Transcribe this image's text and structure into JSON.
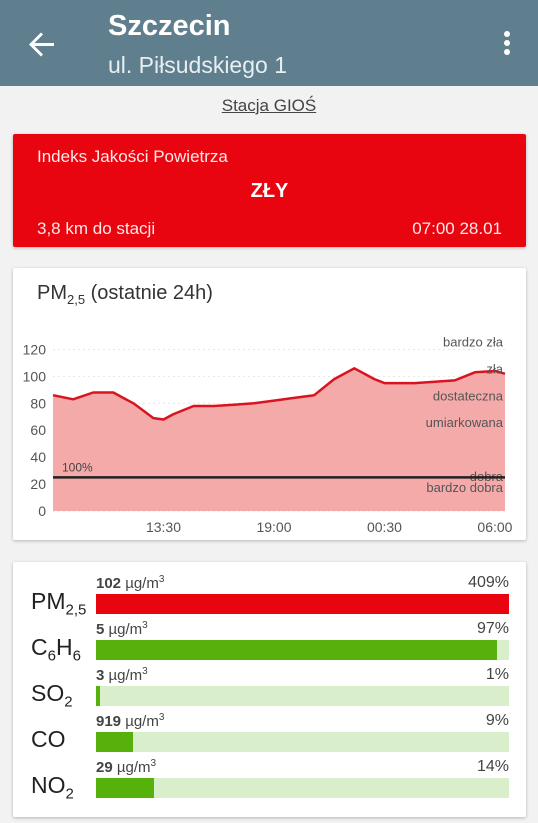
{
  "header": {
    "city": "Szczecin",
    "street": "ul. Piłsudskiego 1",
    "back_icon": "arrow-left-icon",
    "menu_icon": "more-vert-icon"
  },
  "station_link": "Stacja GIOŚ",
  "aqi": {
    "label": "Indeks Jakości Powietrza",
    "value": "ZŁY",
    "distance": "3,8 km do stacji",
    "time": "07:00 28.01",
    "color": "#e8050f"
  },
  "chart": {
    "title_main": "PM",
    "title_sub": "2,5",
    "title_rest": " (ostatnie 24h)"
  },
  "chart_data": {
    "type": "area",
    "x": [
      "08:00",
      "09:00",
      "10:00",
      "11:00",
      "12:00",
      "13:00",
      "13:30",
      "14:00",
      "15:00",
      "16:00",
      "17:00",
      "18:00",
      "19:00",
      "20:00",
      "21:00",
      "22:00",
      "23:00",
      "00:00",
      "00:30",
      "01:00",
      "02:00",
      "03:00",
      "04:00",
      "05:00",
      "06:00",
      "06:30"
    ],
    "y": [
      86,
      83,
      88,
      88,
      80,
      69,
      68,
      72,
      78,
      78,
      79,
      80,
      82,
      84,
      86,
      98,
      106,
      98,
      95,
      95,
      95,
      96,
      97,
      103,
      104,
      102
    ],
    "xticks": [
      "13:30",
      "19:00",
      "00:30",
      "06:00"
    ],
    "yticks": [
      0,
      20,
      40,
      60,
      80,
      100,
      120
    ],
    "ylim": [
      0,
      130
    ],
    "reference": {
      "value": 25,
      "label": "100%"
    },
    "bands": [
      {
        "label": "bardzo zła",
        "y": 120
      },
      {
        "label": "zła",
        "y": 100
      },
      {
        "label": "dostateczna",
        "y": 80
      },
      {
        "label": "umiarkowana",
        "y": 60
      },
      {
        "label": "dobra",
        "y": 20
      },
      {
        "label": "bardzo dobra",
        "y": 12
      }
    ],
    "fill_color": "#f5aaaa",
    "line_color": "#d9141e",
    "grid": true
  },
  "pollutants": [
    {
      "name": "PM",
      "sub": "2,5",
      "value": "102",
      "unit": "µg/m",
      "unit_sup": "3",
      "percent_label": "409%",
      "percent": 409,
      "color": "#e8050f"
    },
    {
      "name": "C",
      "sub": "6",
      "name2": "H",
      "sub2": "6",
      "value": "5",
      "unit": "µg/m",
      "unit_sup": "3",
      "percent_label": "97%",
      "percent": 97,
      "color": "#56b10a"
    },
    {
      "name": "SO",
      "sub": "2",
      "value": "3",
      "unit": "µg/m",
      "unit_sup": "3",
      "percent_label": "1%",
      "percent": 1,
      "color": "#56b10a"
    },
    {
      "name": "CO",
      "sub": "",
      "value": "919",
      "unit": "µg/m",
      "unit_sup": "3",
      "percent_label": "9%",
      "percent": 9,
      "color": "#56b10a"
    },
    {
      "name": "NO",
      "sub": "2",
      "value": "29",
      "unit": "µg/m",
      "unit_sup": "3",
      "percent_label": "14%",
      "percent": 14,
      "color": "#56b10a"
    }
  ]
}
